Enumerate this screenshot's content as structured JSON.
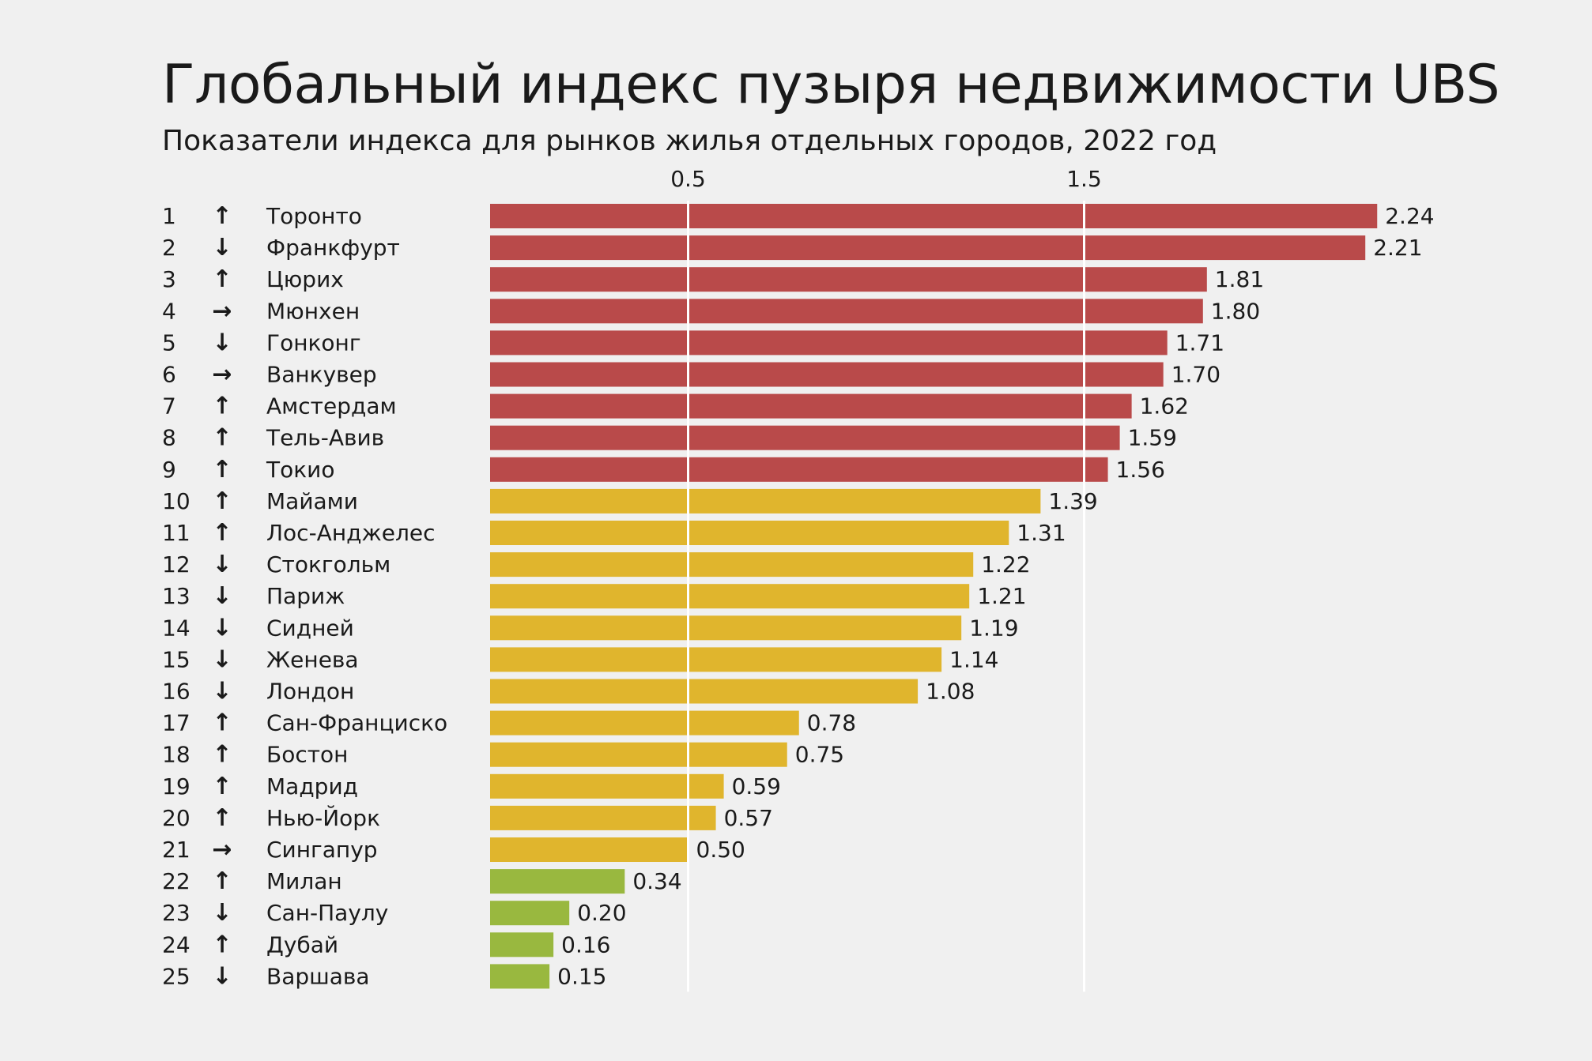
{
  "title": "Глобальный индекс пузыря недвижимости UBS",
  "subtitle": "Показатели индекса для рынков жилья отдельных городов, 2022 год",
  "colors": {
    "background": "#f0f0f0",
    "bubble_risk": "#b94a4a",
    "overvalued": "#e0b52d",
    "fair_valued": "#99b83f",
    "gridline": "#ffffff",
    "text": "#1a1a1a"
  },
  "chart_data": {
    "type": "bar",
    "orientation": "horizontal",
    "title": "Глобальный индекс пузыря недвижимости UBS",
    "subtitle": "Показатели индекса для рынков жилья отдельных городов, 2022 год",
    "x_ticks": [
      "0.5",
      "1.5"
    ],
    "x_tick_values": [
      0.5,
      1.5
    ],
    "xlim": [
      0,
      2.24
    ],
    "grid": true,
    "rows": [
      {
        "rank": "1",
        "trend": "up",
        "arrow": "↑",
        "city": "Торонто",
        "value": 2.24,
        "label": "2.24",
        "category": "bubble_risk"
      },
      {
        "rank": "2",
        "trend": "down",
        "arrow": "↓",
        "city": "Франкфурт",
        "value": 2.21,
        "label": "2.21",
        "category": "bubble_risk"
      },
      {
        "rank": "3",
        "trend": "up",
        "arrow": "↑",
        "city": "Цюрих",
        "value": 1.81,
        "label": "1.81",
        "category": "bubble_risk"
      },
      {
        "rank": "4",
        "trend": "same",
        "arrow": "→",
        "city": "Мюнхен",
        "value": 1.8,
        "label": "1.80",
        "category": "bubble_risk"
      },
      {
        "rank": "5",
        "trend": "down",
        "arrow": "↓",
        "city": "Гонконг",
        "value": 1.71,
        "label": "1.71",
        "category": "bubble_risk"
      },
      {
        "rank": "6",
        "trend": "same",
        "arrow": "→",
        "city": "Ванкувер",
        "value": 1.7,
        "label": "1.70",
        "category": "bubble_risk"
      },
      {
        "rank": "7",
        "trend": "up",
        "arrow": "↑",
        "city": "Амстердам",
        "value": 1.62,
        "label": "1.62",
        "category": "bubble_risk"
      },
      {
        "rank": "8",
        "trend": "up",
        "arrow": "↑",
        "city": "Тель-Авив",
        "value": 1.59,
        "label": "1.59",
        "category": "bubble_risk"
      },
      {
        "rank": "9",
        "trend": "up",
        "arrow": "↑",
        "city": "Токио",
        "value": 1.56,
        "label": "1.56",
        "category": "bubble_risk"
      },
      {
        "rank": "10",
        "trend": "up",
        "arrow": "↑",
        "city": "Майами",
        "value": 1.39,
        "label": "1.39",
        "category": "overvalued"
      },
      {
        "rank": "11",
        "trend": "up",
        "arrow": "↑",
        "city": "Лос-Анджелес",
        "value": 1.31,
        "label": "1.31",
        "category": "overvalued"
      },
      {
        "rank": "12",
        "trend": "down",
        "arrow": "↓",
        "city": "Стокгольм",
        "value": 1.22,
        "label": "1.22",
        "category": "overvalued"
      },
      {
        "rank": "13",
        "trend": "down",
        "arrow": "↓",
        "city": "Париж",
        "value": 1.21,
        "label": "1.21",
        "category": "overvalued"
      },
      {
        "rank": "14",
        "trend": "down",
        "arrow": "↓",
        "city": "Сидней",
        "value": 1.19,
        "label": "1.19",
        "category": "overvalued"
      },
      {
        "rank": "15",
        "trend": "down",
        "arrow": "↓",
        "city": "Женева",
        "value": 1.14,
        "label": "1.14",
        "category": "overvalued"
      },
      {
        "rank": "16",
        "trend": "down",
        "arrow": "↓",
        "city": "Лондон",
        "value": 1.08,
        "label": "1.08",
        "category": "overvalued"
      },
      {
        "rank": "17",
        "trend": "up",
        "arrow": "↑",
        "city": "Сан-Франциско",
        "value": 0.78,
        "label": "0.78",
        "category": "overvalued"
      },
      {
        "rank": "18",
        "trend": "up",
        "arrow": "↑",
        "city": "Бостон",
        "value": 0.75,
        "label": "0.75",
        "category": "overvalued"
      },
      {
        "rank": "19",
        "trend": "up",
        "arrow": "↑",
        "city": "Мадрид",
        "value": 0.59,
        "label": "0.59",
        "category": "overvalued"
      },
      {
        "rank": "20",
        "trend": "up",
        "arrow": "↑",
        "city": "Нью-Йорк",
        "value": 0.57,
        "label": "0.57",
        "category": "overvalued"
      },
      {
        "rank": "21",
        "trend": "same",
        "arrow": "→",
        "city": "Сингапур",
        "value": 0.5,
        "label": "0.50",
        "category": "overvalued"
      },
      {
        "rank": "22",
        "trend": "up",
        "arrow": "↑",
        "city": "Милан",
        "value": 0.34,
        "label": "0.34",
        "category": "fair_valued"
      },
      {
        "rank": "23",
        "trend": "down",
        "arrow": "↓",
        "city": "Сан-Паулу",
        "value": 0.2,
        "label": "0.20",
        "category": "fair_valued"
      },
      {
        "rank": "24",
        "trend": "up",
        "arrow": "↑",
        "city": "Дубай",
        "value": 0.16,
        "label": "0.16",
        "category": "fair_valued"
      },
      {
        "rank": "25",
        "trend": "down",
        "arrow": "↓",
        "city": "Варшава",
        "value": 0.15,
        "label": "0.15",
        "category": "fair_valued"
      }
    ]
  }
}
